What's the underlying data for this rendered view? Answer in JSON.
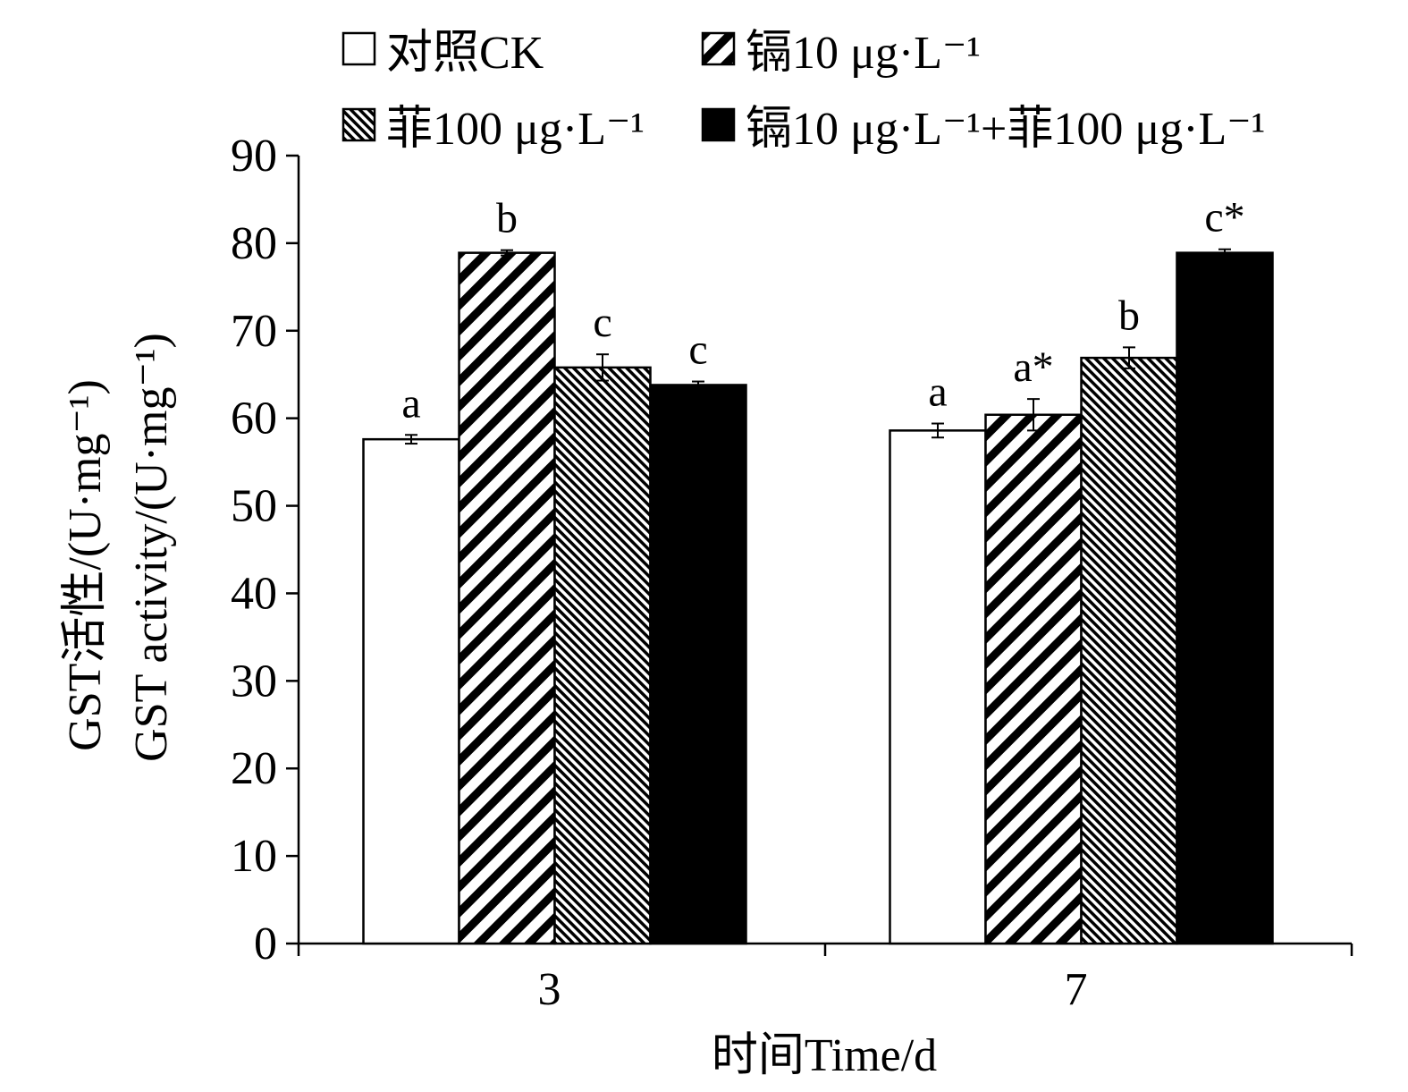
{
  "chart_data": {
    "type": "bar",
    "categories": [
      "3",
      "7"
    ],
    "series": [
      {
        "name": "对照CK",
        "values": [
          57.6,
          58.6
        ],
        "errors": [
          0.5,
          0.8
        ],
        "labels": [
          "a",
          "a"
        ],
        "fill": "white"
      },
      {
        "name": "镉10 μg·L⁻¹",
        "values": [
          78.9,
          60.4
        ],
        "errors": [
          0.3,
          1.8
        ],
        "labels": [
          "b",
          "a*"
        ],
        "fill": "wide-diagonal-stripes"
      },
      {
        "name": "菲100 μg·L⁻¹",
        "values": [
          65.8,
          66.9
        ],
        "errors": [
          1.5,
          1.2
        ],
        "labels": [
          "c",
          "b"
        ],
        "fill": "fine-diagonal-stripes"
      },
      {
        "name": "镉10 μg·L⁻¹+菲100 μg·L⁻¹",
        "values": [
          63.8,
          78.9
        ],
        "errors": [
          0.4,
          0.4
        ],
        "labels": [
          "c",
          "c*"
        ],
        "fill": "black"
      }
    ],
    "ylabel_cn": "GST活性/(U·mg⁻¹)",
    "ylabel_en": "GST activity/(U·mg⁻¹)",
    "xlabel": "时间Time/d",
    "ylim": [
      0,
      90
    ],
    "yticks": [
      0,
      10,
      20,
      30,
      40,
      50,
      60,
      70,
      80,
      90
    ],
    "legend_position": "top",
    "grid": false
  }
}
